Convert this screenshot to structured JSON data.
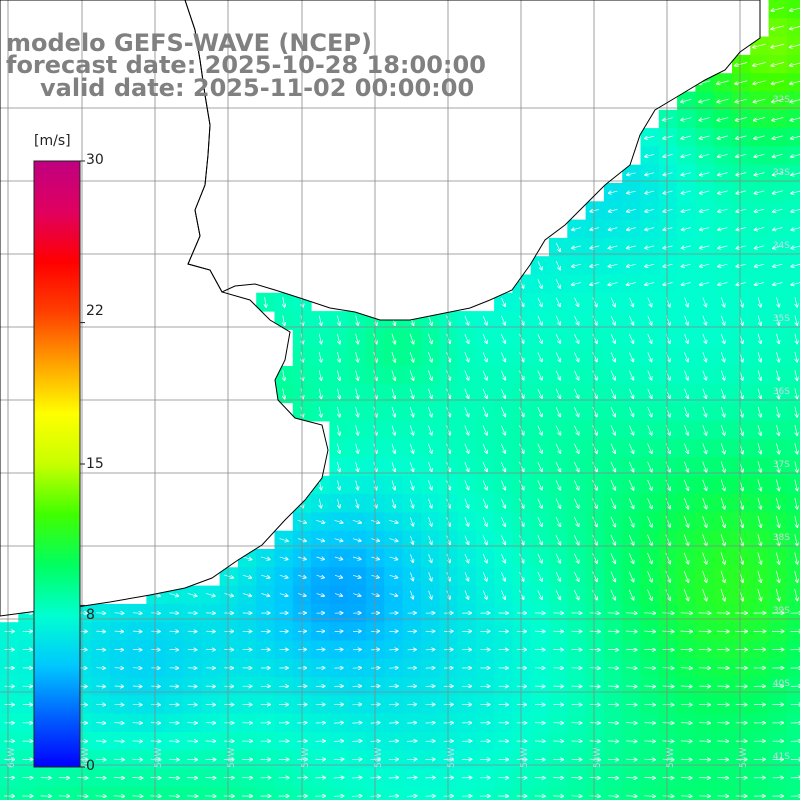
{
  "header": {
    "line1": "modelo GEFS-WAVE (NCEP)",
    "line2": "forecast date: 2025-10-28 18:00:00",
    "line3": "valid date: 2025-11-02 00:00:00"
  },
  "colorbar": {
    "unit": "[m/s]",
    "ticks": [
      {
        "value": 30,
        "label": "30"
      },
      {
        "value": 22,
        "label": "22"
      },
      {
        "value": 15,
        "label": "15"
      },
      {
        "value": 8,
        "label": "8"
      },
      {
        "value": 0,
        "label": "0"
      }
    ],
    "min": 0,
    "max": 30,
    "colors": [
      "#0000ff",
      "#0060ff",
      "#00c8ff",
      "#00ffd0",
      "#00ff60",
      "#40ff00",
      "#c8ff00",
      "#ffff00",
      "#ffa000",
      "#ff4000",
      "#ff0000",
      "#e00060",
      "#c00080"
    ]
  },
  "map": {
    "field": "wind speed",
    "lat_labels": [
      "32S",
      "33S",
      "34S",
      "35S",
      "36S",
      "37S",
      "38S",
      "39S",
      "40S",
      "41S"
    ],
    "lon_labels": [
      "61W",
      "60W",
      "59W",
      "58W",
      "57W",
      "56W",
      "55W",
      "54W",
      "53W",
      "52W",
      "51W"
    ],
    "dominant_wind_direction": "south-southeast in central basin, eastward along southern coast, southwest near northeast coast",
    "speed_range_ms": [
      5,
      12
    ]
  }
}
